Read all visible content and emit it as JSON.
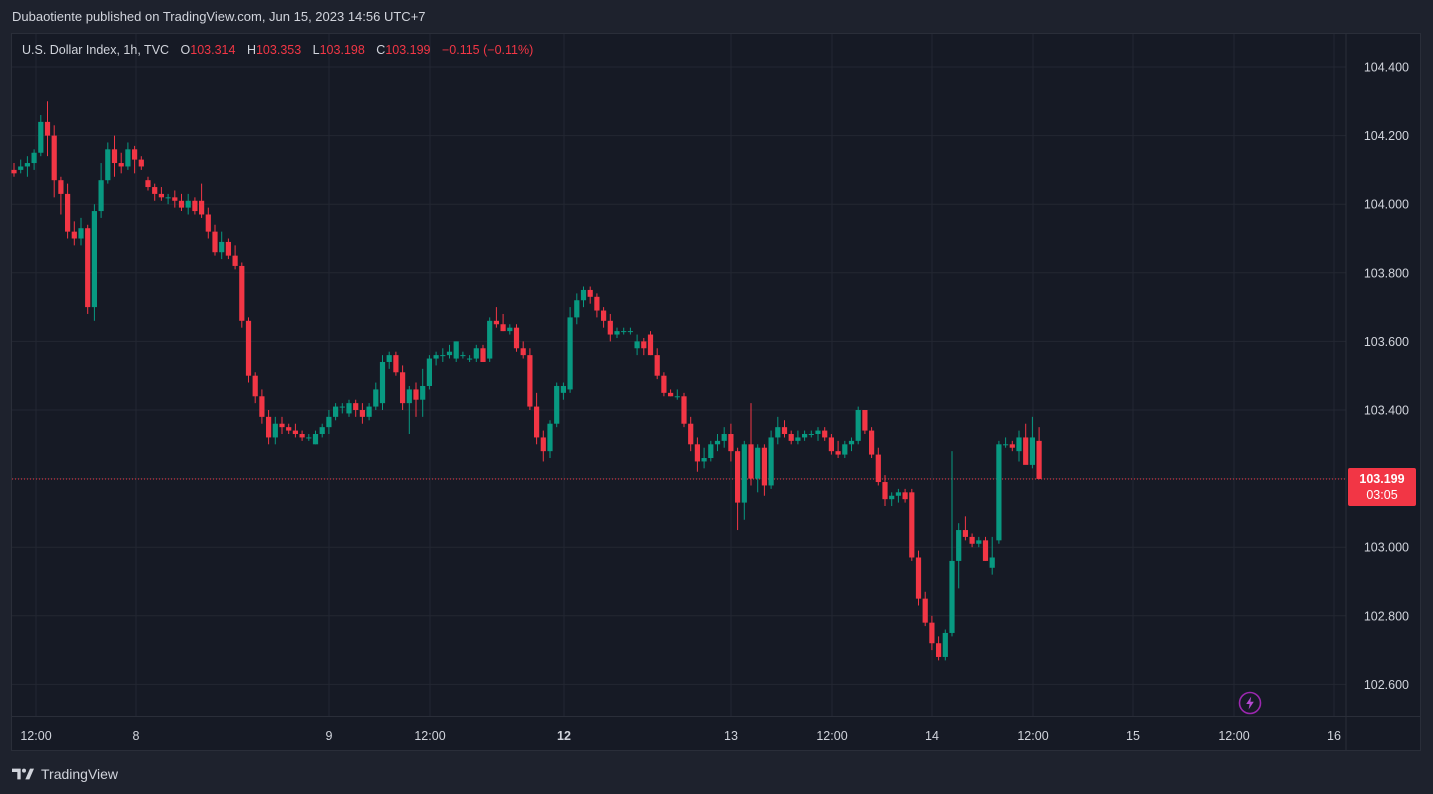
{
  "header": {
    "text": "Dubaotiente published on TradingView.com, Jun 15, 2023 14:56 UTC+7"
  },
  "legend": {
    "symbol": "U.S. Dollar Index, 1h, TVC",
    "o_label": "O",
    "o_value": "103.314",
    "h_label": "H",
    "h_value": "103.353",
    "l_label": "L",
    "l_value": "103.198",
    "c_label": "C",
    "c_value": "103.199",
    "change": "−0.115 (−0.11%)"
  },
  "last_price": {
    "price": "103.199",
    "countdown": "03:05"
  },
  "footer": {
    "brand": "TradingView"
  },
  "colors": {
    "up": "#089981",
    "down": "#f23645",
    "background": "#161a25",
    "grid": "#232732",
    "text": "#d1d4dc"
  },
  "icons": {
    "logo": "tradingview-logo-icon",
    "bolt": "lightning-icon"
  },
  "chart_data": {
    "type": "candlestick",
    "title": "U.S. Dollar Index, 1h, TVC",
    "ylim": [
      102.53,
      104.47
    ],
    "y_ticks": [
      "104.400",
      "104.200",
      "104.000",
      "103.800",
      "103.600",
      "103.400",
      "103.200",
      "103.000",
      "102.800",
      "102.600"
    ],
    "x_ticks": [
      {
        "label": "12:00",
        "bold": false
      },
      {
        "label": "8",
        "bold": false
      },
      {
        "label": "9",
        "bold": false
      },
      {
        "label": "12:00",
        "bold": false
      },
      {
        "label": "12",
        "bold": true
      },
      {
        "label": "13",
        "bold": false
      },
      {
        "label": "12:00",
        "bold": false
      },
      {
        "label": "14",
        "bold": false
      },
      {
        "label": "12:00",
        "bold": false
      },
      {
        "label": "15",
        "bold": false
      },
      {
        "label": "12:00",
        "bold": false
      },
      {
        "label": "16",
        "bold": false
      }
    ],
    "grid": true,
    "candles": [
      [
        104.1,
        104.12,
        104.08,
        104.09
      ],
      [
        104.1,
        104.13,
        104.09,
        104.11
      ],
      [
        104.11,
        104.14,
        104.08,
        104.12
      ],
      [
        104.12,
        104.16,
        104.1,
        104.15
      ],
      [
        104.15,
        104.26,
        104.14,
        104.24
      ],
      [
        104.24,
        104.3,
        104.14,
        104.2
      ],
      [
        104.2,
        104.23,
        104.02,
        104.07
      ],
      [
        104.07,
        104.08,
        103.97,
        104.03
      ],
      [
        104.03,
        104.06,
        103.9,
        103.92
      ],
      [
        103.92,
        103.95,
        103.88,
        103.9
      ],
      [
        103.9,
        103.96,
        103.88,
        103.93
      ],
      [
        103.93,
        103.94,
        103.68,
        103.7
      ],
      [
        103.7,
        104.0,
        103.66,
        103.98
      ],
      [
        103.98,
        104.12,
        103.96,
        104.07
      ],
      [
        104.07,
        104.18,
        104.06,
        104.16
      ],
      [
        104.16,
        104.2,
        104.08,
        104.12
      ],
      [
        104.12,
        104.15,
        104.09,
        104.11
      ],
      [
        104.11,
        104.18,
        104.1,
        104.16
      ],
      [
        104.16,
        104.17,
        104.09,
        104.13
      ],
      [
        104.13,
        104.14,
        104.1,
        104.11
      ],
      [
        104.07,
        104.08,
        104.04,
        104.05
      ],
      [
        104.05,
        104.06,
        104.01,
        104.03
      ],
      [
        104.03,
        104.05,
        104.01,
        104.02
      ],
      [
        104.02,
        104.03,
        104.0,
        104.02
      ],
      [
        104.02,
        104.04,
        103.99,
        104.01
      ],
      [
        104.01,
        104.03,
        103.98,
        103.99
      ],
      [
        103.99,
        104.03,
        103.97,
        104.01
      ],
      [
        104.01,
        104.02,
        103.97,
        103.98
      ],
      [
        104.01,
        104.06,
        103.96,
        103.97
      ],
      [
        103.97,
        103.99,
        103.9,
        103.92
      ],
      [
        103.92,
        103.94,
        103.85,
        103.86
      ],
      [
        103.86,
        103.92,
        103.84,
        103.89
      ],
      [
        103.89,
        103.9,
        103.84,
        103.85
      ],
      [
        103.85,
        103.88,
        103.81,
        103.82
      ],
      [
        103.82,
        103.83,
        103.64,
        103.66
      ],
      [
        103.66,
        103.67,
        103.48,
        103.5
      ],
      [
        103.5,
        103.51,
        103.42,
        103.44
      ],
      [
        103.44,
        103.46,
        103.36,
        103.38
      ],
      [
        103.38,
        103.4,
        103.3,
        103.32
      ],
      [
        103.32,
        103.38,
        103.3,
        103.36
      ],
      [
        103.36,
        103.38,
        103.33,
        103.35
      ],
      [
        103.35,
        103.36,
        103.33,
        103.34
      ],
      [
        103.34,
        103.36,
        103.32,
        103.33
      ],
      [
        103.33,
        103.34,
        103.31,
        103.32
      ],
      [
        103.32,
        103.33,
        103.31,
        103.32
      ],
      [
        103.3,
        103.34,
        103.3,
        103.33
      ],
      [
        103.33,
        103.36,
        103.32,
        103.35
      ],
      [
        103.35,
        103.4,
        103.33,
        103.38
      ],
      [
        103.38,
        103.42,
        103.37,
        103.41
      ],
      [
        103.41,
        103.42,
        103.39,
        103.41
      ],
      [
        103.39,
        103.43,
        103.38,
        103.42
      ],
      [
        103.42,
        103.43,
        103.38,
        103.4
      ],
      [
        103.4,
        103.42,
        103.36,
        103.38
      ],
      [
        103.38,
        103.42,
        103.37,
        103.41
      ],
      [
        103.41,
        103.48,
        103.4,
        103.46
      ],
      [
        103.42,
        103.56,
        103.4,
        103.54
      ],
      [
        103.54,
        103.57,
        103.52,
        103.56
      ],
      [
        103.56,
        103.57,
        103.5,
        103.51
      ],
      [
        103.51,
        103.53,
        103.4,
        103.42
      ],
      [
        103.42,
        103.47,
        103.33,
        103.46
      ],
      [
        103.46,
        103.48,
        103.38,
        103.43
      ],
      [
        103.43,
        103.52,
        103.38,
        103.47
      ],
      [
        103.47,
        103.56,
        103.46,
        103.55
      ],
      [
        103.55,
        103.57,
        103.53,
        103.56
      ],
      [
        103.56,
        103.58,
        103.54,
        103.56
      ],
      [
        103.56,
        103.59,
        103.55,
        103.57
      ],
      [
        103.55,
        103.6,
        103.54,
        103.6
      ],
      [
        103.56,
        103.57,
        103.55,
        103.56
      ],
      [
        103.55,
        103.56,
        103.54,
        103.55
      ],
      [
        103.55,
        103.59,
        103.54,
        103.58
      ],
      [
        103.58,
        103.59,
        103.54,
        103.54
      ],
      [
        103.55,
        103.67,
        103.54,
        103.66
      ],
      [
        103.66,
        103.7,
        103.64,
        103.65
      ],
      [
        103.65,
        103.68,
        103.63,
        103.63
      ],
      [
        103.63,
        103.65,
        103.62,
        103.64
      ],
      [
        103.64,
        103.65,
        103.57,
        103.58
      ],
      [
        103.58,
        103.6,
        103.55,
        103.56
      ],
      [
        103.56,
        103.58,
        103.4,
        103.41
      ],
      [
        103.41,
        103.45,
        103.3,
        103.32
      ],
      [
        103.32,
        103.34,
        103.25,
        103.28
      ],
      [
        103.28,
        103.37,
        103.26,
        103.36
      ],
      [
        103.36,
        103.48,
        103.35,
        103.47
      ],
      [
        103.45,
        103.48,
        103.43,
        103.47
      ],
      [
        103.46,
        103.7,
        103.45,
        103.67
      ],
      [
        103.67,
        103.74,
        103.65,
        103.72
      ],
      [
        103.72,
        103.76,
        103.7,
        103.75
      ],
      [
        103.75,
        103.76,
        103.71,
        103.73
      ],
      [
        103.73,
        103.74,
        103.67,
        103.69
      ],
      [
        103.69,
        103.7,
        103.64,
        103.66
      ],
      [
        103.66,
        103.68,
        103.6,
        103.62
      ],
      [
        103.62,
        103.64,
        103.61,
        103.63
      ],
      [
        103.63,
        103.64,
        103.62,
        103.63
      ],
      [
        103.63,
        103.64,
        103.62,
        103.63
      ],
      [
        103.58,
        103.62,
        103.56,
        103.6
      ],
      [
        103.6,
        103.61,
        103.56,
        103.58
      ],
      [
        103.62,
        103.63,
        103.56,
        103.56
      ],
      [
        103.56,
        103.58,
        103.49,
        103.5
      ],
      [
        103.5,
        103.51,
        103.44,
        103.45
      ],
      [
        103.45,
        103.46,
        103.44,
        103.44
      ],
      [
        103.44,
        103.46,
        103.43,
        103.44
      ],
      [
        103.44,
        103.45,
        103.35,
        103.36
      ],
      [
        103.36,
        103.38,
        103.28,
        103.3
      ],
      [
        103.3,
        103.32,
        103.22,
        103.25
      ],
      [
        103.25,
        103.29,
        103.23,
        103.26
      ],
      [
        103.26,
        103.31,
        103.25,
        103.3
      ],
      [
        103.3,
        103.33,
        103.28,
        103.31
      ],
      [
        103.31,
        103.35,
        103.29,
        103.33
      ],
      [
        103.33,
        103.36,
        103.25,
        103.28
      ],
      [
        103.28,
        103.29,
        103.05,
        103.13
      ],
      [
        103.13,
        103.31,
        103.08,
        103.3
      ],
      [
        103.3,
        103.42,
        103.18,
        103.2
      ],
      [
        103.2,
        103.3,
        103.16,
        103.29
      ],
      [
        103.29,
        103.3,
        103.15,
        103.18
      ],
      [
        103.18,
        103.34,
        103.17,
        103.32
      ],
      [
        103.32,
        103.38,
        103.3,
        103.35
      ],
      [
        103.35,
        103.37,
        103.32,
        103.33
      ],
      [
        103.33,
        103.34,
        103.3,
        103.31
      ],
      [
        103.31,
        103.34,
        103.3,
        103.32
      ],
      [
        103.32,
        103.34,
        103.31,
        103.33
      ],
      [
        103.33,
        103.34,
        103.32,
        103.33
      ],
      [
        103.33,
        103.35,
        103.31,
        103.34
      ],
      [
        103.34,
        103.35,
        103.31,
        103.32
      ],
      [
        103.32,
        103.33,
        103.27,
        103.28
      ],
      [
        103.28,
        103.31,
        103.26,
        103.27
      ],
      [
        103.27,
        103.31,
        103.26,
        103.3
      ],
      [
        103.3,
        103.32,
        103.28,
        103.31
      ],
      [
        103.31,
        103.41,
        103.3,
        103.4
      ],
      [
        103.4,
        103.4,
        103.33,
        103.34
      ],
      [
        103.34,
        103.35,
        103.26,
        103.27
      ],
      [
        103.27,
        103.29,
        103.18,
        103.19
      ],
      [
        103.19,
        103.21,
        103.12,
        103.14
      ],
      [
        103.14,
        103.16,
        103.12,
        103.15
      ],
      [
        103.15,
        103.17,
        103.13,
        103.16
      ],
      [
        103.16,
        103.17,
        103.13,
        103.14
      ],
      [
        103.16,
        103.17,
        102.96,
        102.97
      ],
      [
        102.97,
        102.99,
        102.83,
        102.85
      ],
      [
        102.85,
        102.87,
        102.77,
        102.78
      ],
      [
        102.78,
        102.8,
        102.7,
        102.72
      ],
      [
        102.72,
        102.74,
        102.67,
        102.68
      ],
      [
        102.68,
        102.76,
        102.67,
        102.75
      ],
      [
        102.75,
        103.28,
        102.74,
        102.96
      ],
      [
        102.96,
        103.07,
        102.88,
        103.05
      ],
      [
        103.05,
        103.09,
        103.02,
        103.03
      ],
      [
        103.03,
        103.04,
        103.0,
        103.01
      ],
      [
        103.01,
        103.03,
        103.0,
        103.02
      ],
      [
        103.02,
        103.03,
        102.96,
        102.96
      ],
      [
        102.94,
        103.03,
        102.92,
        102.97
      ],
      [
        103.02,
        103.31,
        103.01,
        103.3
      ],
      [
        103.3,
        103.32,
        103.29,
        103.3
      ],
      [
        103.3,
        103.31,
        103.28,
        103.29
      ],
      [
        103.28,
        103.34,
        103.25,
        103.32
      ],
      [
        103.32,
        103.36,
        103.25,
        103.24
      ],
      [
        103.24,
        103.38,
        103.23,
        103.32
      ],
      [
        103.31,
        103.35,
        103.198,
        103.199
      ]
    ],
    "last_price": 103.199
  }
}
